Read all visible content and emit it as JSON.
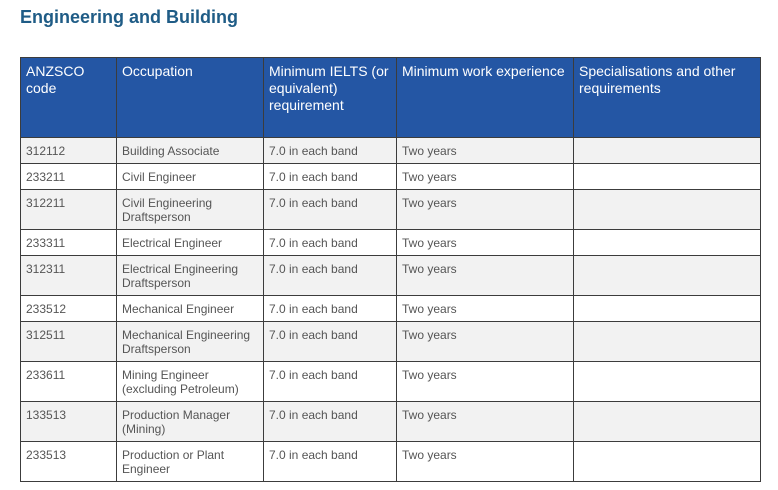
{
  "section": {
    "title": "Engineering and Building"
  },
  "table": {
    "headers": [
      "ANZSCO code",
      "Occupation",
      "Minimum IELTS (or equivalent) requirement",
      "Minimum work experience",
      "Specialisations and other requirements"
    ],
    "rows": [
      [
        "312112",
        "Building Associate",
        "7.0 in each band",
        "Two years",
        ""
      ],
      [
        "233211",
        "Civil Engineer",
        "7.0 in each band",
        "Two years",
        ""
      ],
      [
        "312211",
        "Civil Engineering Draftsperson",
        "7.0 in each band",
        "Two years",
        ""
      ],
      [
        "233311",
        "Electrical Engineer",
        "7.0 in each band",
        "Two years",
        ""
      ],
      [
        "312311",
        "Electrical Engineering Draftsperson",
        "7.0 in each band",
        "Two years",
        ""
      ],
      [
        "233512",
        "Mechanical Engineer",
        "7.0 in each band",
        "Two years",
        ""
      ],
      [
        "312511",
        "Mechanical Engineering Draftsperson",
        "7.0 in each band",
        "Two years",
        ""
      ],
      [
        "233611",
        "Mining Engineer (excluding Petroleum)",
        "7.0 in each band",
        "Two years",
        ""
      ],
      [
        "133513",
        "Production Manager (Mining)",
        "7.0 in each band",
        "Two years",
        ""
      ],
      [
        "233513",
        "Production or Plant Engineer",
        "7.0 in each band",
        "Two years",
        ""
      ]
    ]
  }
}
